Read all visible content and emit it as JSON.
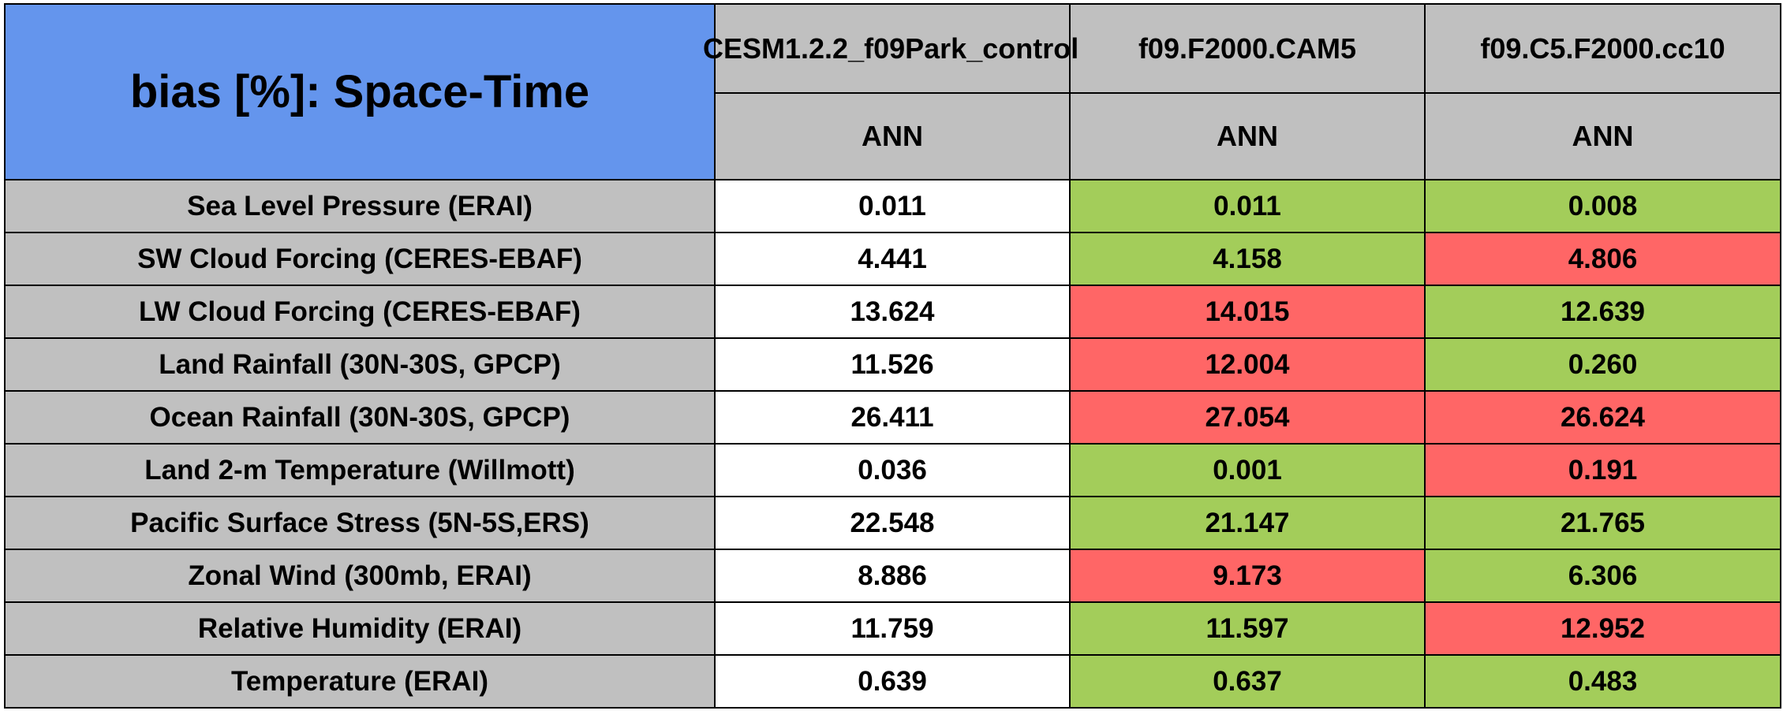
{
  "chart_data": {
    "type": "table",
    "title": "bias [%]: Space-Time",
    "columns": [
      {
        "run": "CESM1.2.2_f09Park_control",
        "season": "ANN"
      },
      {
        "run": "f09.F2000.CAM5",
        "season": "ANN"
      },
      {
        "run": "f09.C5.F2000.cc10",
        "season": "ANN"
      }
    ],
    "colors": {
      "title_bg": "#6495ed",
      "header_bg": "#c0c0c0",
      "better": "#a3cd5a",
      "worse": "#ff6666",
      "baseline": "#ffffff"
    },
    "rows": [
      {
        "label": "Sea Level Pressure (ERAI)",
        "values": [
          "0.011",
          "0.011",
          "0.008"
        ],
        "status": [
          "baseline",
          "better",
          "better"
        ]
      },
      {
        "label": "SW Cloud Forcing (CERES-EBAF)",
        "values": [
          "4.441",
          "4.158",
          "4.806"
        ],
        "status": [
          "baseline",
          "better",
          "worse"
        ]
      },
      {
        "label": "LW Cloud Forcing (CERES-EBAF)",
        "values": [
          "13.624",
          "14.015",
          "12.639"
        ],
        "status": [
          "baseline",
          "worse",
          "better"
        ]
      },
      {
        "label": "Land Rainfall (30N-30S, GPCP)",
        "values": [
          "11.526",
          "12.004",
          "0.260"
        ],
        "status": [
          "baseline",
          "worse",
          "better"
        ]
      },
      {
        "label": "Ocean Rainfall (30N-30S, GPCP)",
        "values": [
          "26.411",
          "27.054",
          "26.624"
        ],
        "status": [
          "baseline",
          "worse",
          "worse"
        ]
      },
      {
        "label": "Land 2-m Temperature (Willmott)",
        "values": [
          "0.036",
          "0.001",
          "0.191"
        ],
        "status": [
          "baseline",
          "better",
          "worse"
        ]
      },
      {
        "label": "Pacific Surface Stress (5N-5S,ERS)",
        "values": [
          "22.548",
          "21.147",
          "21.765"
        ],
        "status": [
          "baseline",
          "better",
          "better"
        ]
      },
      {
        "label": "Zonal Wind (300mb, ERAI)",
        "values": [
          "8.886",
          "9.173",
          "6.306"
        ],
        "status": [
          "baseline",
          "worse",
          "better"
        ]
      },
      {
        "label": "Relative Humidity (ERAI)",
        "values": [
          "11.759",
          "11.597",
          "12.952"
        ],
        "status": [
          "baseline",
          "better",
          "worse"
        ]
      },
      {
        "label": "Temperature (ERAI)",
        "values": [
          "0.639",
          "0.637",
          "0.483"
        ],
        "status": [
          "baseline",
          "better",
          "better"
        ]
      }
    ]
  }
}
